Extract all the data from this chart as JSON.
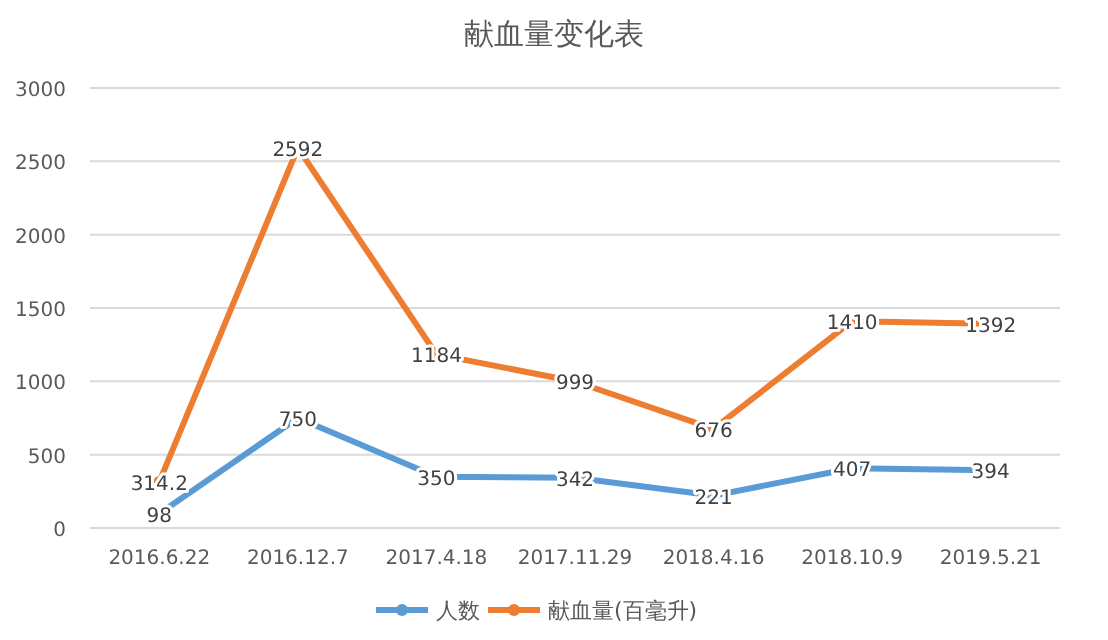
{
  "chart_data": {
    "type": "line",
    "title": "献血量变化表",
    "categories": [
      "2016.6.22",
      "2016.12.7",
      "2017.4.18",
      "2017.11.29",
      "2018.4.16",
      "2018.10.9",
      "2019.5.21"
    ],
    "series": [
      {
        "name": "人数",
        "color": "#5b9bd5",
        "values": [
          98,
          750,
          350,
          342,
          221,
          407,
          394
        ]
      },
      {
        "name": "献血量(百毫升)",
        "color": "#ed7d31",
        "values": [
          314.2,
          2592,
          1184,
          999,
          676,
          1410,
          1392
        ]
      }
    ],
    "ylim": [
      0,
      3000
    ],
    "yticks": [
      0,
      500,
      1000,
      1500,
      2000,
      2500,
      3000
    ],
    "grid": "y",
    "legend": "bottom",
    "marker": "circle",
    "data_labels": true
  }
}
